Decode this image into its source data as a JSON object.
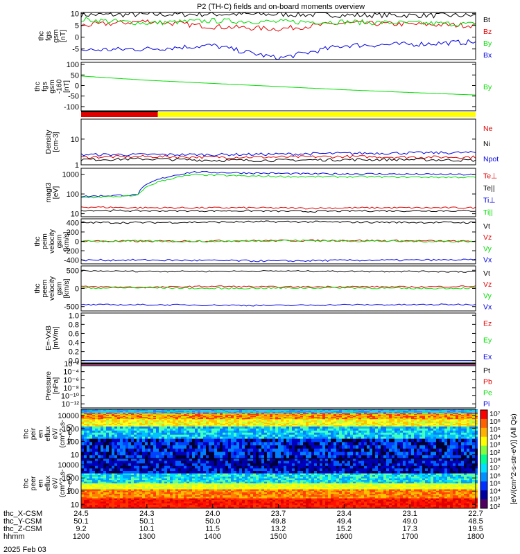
{
  "title": "P2 (TH-C) fields and on-board moments overview",
  "date_label": "2025 Feb 03",
  "colorbar_label": "[eV/(cm^2-s-str-eV)] (All Qs)",
  "colorbar_ticks": [
    "10^7",
    "10^6",
    "10^5",
    "10^4",
    "10^3",
    "10^2",
    "10^8",
    "10^7",
    "10^6",
    "10^5",
    "10^4",
    "10^3",
    "10^2"
  ],
  "colors": {
    "black": "#000000",
    "red": "#e00000",
    "green": "#00dd00",
    "blue": "#0000e0",
    "yellow": "#ffff00"
  },
  "x_axis": {
    "rows": [
      {
        "label": "thc_X-CSM",
        "values": [
          "24.5",
          "24.3",
          "24.0",
          "23.7",
          "23.4",
          "23.1",
          "22.7"
        ]
      },
      {
        "label": "thc_Y-CSM",
        "values": [
          "50.1",
          "50.1",
          "50.0",
          "49.8",
          "49.4",
          "49.0",
          "48.5"
        ]
      },
      {
        "label": "thc_Z-CSM",
        "values": [
          "9.2",
          "10.1",
          "11.5",
          "13.2",
          "15.2",
          "17.3",
          "19.5"
        ]
      },
      {
        "label": "hhmm",
        "values": [
          "1200",
          "1300",
          "1400",
          "1500",
          "1600",
          "1700",
          "1800"
        ]
      }
    ]
  },
  "chart_data": [
    {
      "type": "line",
      "panel": "fgs_gsm",
      "ylabel": [
        "thc",
        "fgs",
        "gsm",
        "[nT]"
      ],
      "yticks": [
        "10",
        "5",
        "0",
        "-5"
      ],
      "ylim": [
        -9.5,
        10.5
      ],
      "x": [
        "1200",
        "1300",
        "1400",
        "1500",
        "1600",
        "1700",
        "1800"
      ],
      "series": [
        {
          "name": "Bt",
          "color": "#000000",
          "values": [
            9.5,
            9.6,
            9.8,
            9.7,
            9.4,
            9.3,
            9.2
          ]
        },
        {
          "name": "Bz",
          "color": "#e00000",
          "values": [
            5.0,
            6.8,
            4.5,
            3.5,
            6.0,
            5.5,
            5.0
          ]
        },
        {
          "name": "By",
          "color": "#00dd00",
          "values": [
            7.5,
            6.0,
            7.0,
            6.5,
            6.5,
            6.0,
            5.5
          ]
        },
        {
          "name": "Bx",
          "color": "#0000e0",
          "values": [
            -5.5,
            -5.0,
            -3.5,
            -9.0,
            -3.5,
            -3.0,
            -2.0
          ]
        }
      ]
    },
    {
      "type": "line",
      "panel": "fgs_gsm_dc",
      "ylabel": [
        "thc",
        "fgs",
        "gsm",
        "-160",
        "[nT]"
      ],
      "yticks": [
        "100",
        "50",
        "0",
        "-50",
        "-100"
      ],
      "ylim": [
        -120,
        110
      ],
      "x": [
        "1200",
        "1300",
        "1400",
        "1500",
        "1600",
        "1700",
        "1800"
      ],
      "series": [
        {
          "name": "By",
          "color": "#00dd00",
          "values": [
            45,
            25,
            10,
            -5,
            -20,
            -33,
            -45
          ]
        }
      ]
    },
    {
      "type": "bar",
      "panel": "mode_bar",
      "segments": [
        {
          "color": "#e00000",
          "from": "1200",
          "to": "1310"
        },
        {
          "color": "#ffff00",
          "from": "1310",
          "to": "1800"
        }
      ]
    },
    {
      "type": "line",
      "panel": "density",
      "scale": "log",
      "ylabel": [
        "Density",
        "[cm-3]"
      ],
      "yticks": [
        "10",
        "1"
      ],
      "ylim": [
        1,
        60
      ],
      "x": [
        "1200",
        "1300",
        "1400",
        "1500",
        "1600",
        "1700",
        "1800"
      ],
      "series": [
        {
          "name": "Ne",
          "color": "#e00000",
          "values": [
            2.0,
            2.1,
            2.0,
            2.0,
            2.1,
            2.0,
            2.0
          ]
        },
        {
          "name": "Ni",
          "color": "#000000",
          "values": [
            1.6,
            1.7,
            1.5,
            1.5,
            1.6,
            1.6,
            1.5
          ]
        },
        {
          "name": "Npot",
          "color": "#0000e0",
          "values": [
            2.5,
            2.5,
            2.5,
            2.6,
            2.8,
            2.9,
            3.0
          ]
        }
      ]
    },
    {
      "type": "line",
      "panel": "temperature",
      "scale": "log",
      "ylabel": [
        "magt3",
        "[eV]"
      ],
      "yticks": [
        "1000",
        "100",
        "10"
      ],
      "ylim": [
        7,
        2000
      ],
      "x": [
        "1200",
        "1230",
        "1320",
        "1400",
        "1500",
        "1600",
        "1700",
        "1800"
      ],
      "series": [
        {
          "name": "Te⊥",
          "color": "#e00000",
          "values": [
            22,
            20,
            20,
            20,
            19,
            20,
            20,
            20
          ]
        },
        {
          "name": "Te||",
          "color": "#000000",
          "values": [
            15,
            14,
            14,
            14,
            13,
            14,
            14,
            14
          ]
        },
        {
          "name": "Ti⊥",
          "color": "#0000e0",
          "values": [
            75,
            90,
            1300,
            1150,
            1050,
            1050,
            1000,
            950
          ]
        },
        {
          "name": "Ti||",
          "color": "#00dd00",
          "values": [
            65,
            80,
            950,
            800,
            750,
            750,
            720,
            700
          ]
        }
      ]
    },
    {
      "type": "line",
      "panel": "peim_velocity",
      "ylabel": [
        "thc",
        "peim",
        "velocity",
        "gsm",
        "[km/s]"
      ],
      "yticks": [
        "400",
        "200",
        "0",
        "-200",
        "-400"
      ],
      "ylim": [
        -480,
        480
      ],
      "x": [
        "1200",
        "1300",
        "1400",
        "1500",
        "1600",
        "1700",
        "1800"
      ],
      "series": [
        {
          "name": "Vt",
          "color": "#000000",
          "values": [
            400,
            400,
            410,
            420,
            410,
            405,
            400
          ]
        },
        {
          "name": "Vz",
          "color": "#e00000",
          "values": [
            10,
            0,
            10,
            15,
            20,
            10,
            0
          ]
        },
        {
          "name": "Vy",
          "color": "#00dd00",
          "values": [
            0,
            5,
            0,
            20,
            10,
            0,
            0
          ]
        },
        {
          "name": "Vx",
          "color": "#0000e0",
          "values": [
            -400,
            -400,
            -410,
            -420,
            -405,
            -400,
            -395
          ]
        }
      ]
    },
    {
      "type": "line",
      "panel": "peem_velocity",
      "ylabel": [
        "thc",
        "peem",
        "velocity",
        "gsm",
        "[km/s]"
      ],
      "yticks": [
        "500",
        "0",
        "-500"
      ],
      "ylim": [
        -620,
        620
      ],
      "x": [
        "1200",
        "1300",
        "1400",
        "1500",
        "1600",
        "1700",
        "1800"
      ],
      "series": [
        {
          "name": "Vt",
          "color": "#000000",
          "values": [
            480,
            470,
            470,
            480,
            470,
            470,
            460
          ]
        },
        {
          "name": "Vz",
          "color": "#e00000",
          "values": [
            50,
            30,
            60,
            40,
            50,
            40,
            60
          ]
        },
        {
          "name": "Vy",
          "color": "#00dd00",
          "values": [
            10,
            20,
            0,
            10,
            20,
            0,
            10
          ]
        },
        {
          "name": "Vx",
          "color": "#0000e0",
          "values": [
            -450,
            -450,
            -460,
            -470,
            -450,
            -450,
            -440
          ]
        }
      ]
    },
    {
      "type": "line",
      "panel": "efield",
      "ylabel": [
        "E=-VxB",
        "[mV/m]"
      ],
      "yticks": [
        "1.0",
        "0.8",
        "0.6",
        "0.4",
        "0.2",
        "0.0"
      ],
      "ylim": [
        -0.05,
        1.05
      ],
      "x": [
        "1200",
        "1800"
      ],
      "series": [
        {
          "name": "Ez",
          "color": "#e00000",
          "values": [
            0,
            0
          ]
        },
        {
          "name": "Ey",
          "color": "#00dd00",
          "values": [
            0,
            0
          ]
        },
        {
          "name": "Ex",
          "color": "#0000e0",
          "values": [
            0,
            0
          ]
        }
      ]
    },
    {
      "type": "line",
      "panel": "pressure",
      "scale": "log",
      "ylabel": [
        "Pressure",
        "[nPa]"
      ],
      "yticks": [
        "10^-2",
        "10^-4",
        "10^-6",
        "10^-8",
        "10^-10",
        "10^-12"
      ],
      "ylim": [
        -13,
        -2
      ],
      "x": [
        "1200",
        "1800"
      ],
      "series": [
        {
          "name": "Pt",
          "color": "#000000",
          "values": [
            -2.1,
            -2.1
          ]
        },
        {
          "name": "Pb",
          "color": "#e00000",
          "values": [
            -2.3,
            -2.3
          ]
        },
        {
          "name": "Pe",
          "color": "#00dd00",
          "values": [
            -2.6,
            -2.6
          ]
        },
        {
          "name": "Pi",
          "color": "#0000e0",
          "values": [
            -2.5,
            -2.5
          ]
        }
      ]
    },
    {
      "type": "heatmap",
      "panel": "peir_en_eflux",
      "ylabel": [
        "thc",
        "peir",
        "en",
        "eflux",
        "eV/",
        "(cm^2-s-",
        "sr-eV)"
      ],
      "yticks": [
        "10000",
        "1000",
        "100",
        "10"
      ],
      "ylim": [
        5,
        30000
      ],
      "colorbar": [
        "10^2",
        "10^7"
      ]
    },
    {
      "type": "heatmap",
      "panel": "peer_en_eflux",
      "ylabel": [
        "thc",
        "peer",
        "en",
        "eflux",
        "eV/",
        "(cm^2-s-",
        "sr-eV)"
      ],
      "yticks": [
        "10000",
        "1000",
        "100",
        "10"
      ],
      "ylim": [
        5,
        30000
      ],
      "colorbar": [
        "10^2",
        "10^8"
      ]
    }
  ]
}
